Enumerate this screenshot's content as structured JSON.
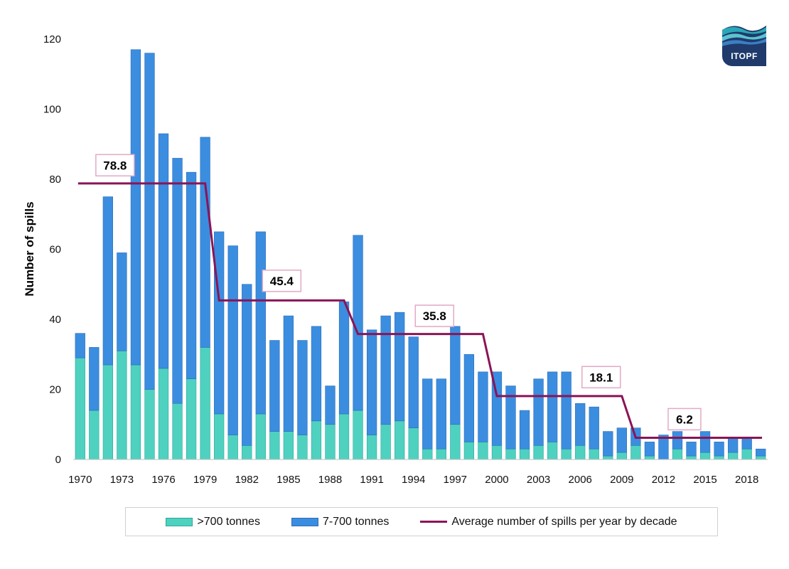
{
  "chart_data": {
    "type": "bar",
    "stacked": true,
    "ylabel": "Number of spills",
    "xlabel": "",
    "ylim": [
      0,
      120
    ],
    "yticks": [
      0,
      20,
      40,
      60,
      80,
      100,
      120
    ],
    "grid": false,
    "legend_position": "bottom",
    "x": [
      1970,
      1971,
      1972,
      1973,
      1974,
      1975,
      1976,
      1977,
      1978,
      1979,
      1980,
      1981,
      1982,
      1983,
      1984,
      1985,
      1986,
      1987,
      1988,
      1989,
      1990,
      1991,
      1992,
      1993,
      1994,
      1995,
      1996,
      1997,
      1998,
      1999,
      2000,
      2001,
      2002,
      2003,
      2004,
      2005,
      2006,
      2007,
      2008,
      2009,
      2010,
      2011,
      2012,
      2013,
      2014,
      2015,
      2016,
      2017,
      2018,
      2019
    ],
    "xtick_labels": [
      "1970",
      "1973",
      "1976",
      "1979",
      "1982",
      "1985",
      "1988",
      "1991",
      "1994",
      "1997",
      "2000",
      "2003",
      "2006",
      "2009",
      "2012",
      "2015",
      "2018"
    ],
    "series": [
      {
        "name": ">700 tonnes",
        "color": "#4fd1c0",
        "values": [
          29,
          14,
          27,
          31,
          27,
          20,
          26,
          16,
          23,
          32,
          13,
          7,
          4,
          13,
          8,
          8,
          7,
          11,
          10,
          13,
          14,
          7,
          10,
          11,
          9,
          3,
          3,
          10,
          5,
          5,
          4,
          3,
          3,
          4,
          5,
          3,
          4,
          3,
          1,
          2,
          4,
          1,
          0,
          3,
          1,
          2,
          1,
          2,
          3,
          1
        ]
      },
      {
        "name": "7-700 tonnes",
        "color": "#3b8de0",
        "values": [
          7,
          18,
          48,
          28,
          90,
          96,
          67,
          70,
          59,
          60,
          52,
          54,
          46,
          52,
          26,
          33,
          27,
          27,
          11,
          32,
          50,
          30,
          31,
          31,
          26,
          20,
          20,
          28,
          25,
          20,
          21,
          18,
          11,
          19,
          20,
          22,
          12,
          12,
          7,
          7,
          5,
          4,
          7,
          5,
          4,
          6,
          4,
          4,
          3,
          2
        ]
      }
    ],
    "average_line": {
      "name": "Average number of spills per year by decade",
      "color": "#8b1456",
      "points": [
        {
          "x": 1970,
          "y": 78.8
        },
        {
          "x": 1979,
          "y": 78.8
        },
        {
          "x": 1980,
          "y": 45.4
        },
        {
          "x": 1989,
          "y": 45.4
        },
        {
          "x": 1990,
          "y": 35.8
        },
        {
          "x": 1999,
          "y": 35.8
        },
        {
          "x": 2000,
          "y": 18.1
        },
        {
          "x": 2009,
          "y": 18.1
        },
        {
          "x": 2010,
          "y": 6.2
        },
        {
          "x": 2019,
          "y": 6.2
        }
      ]
    },
    "annotations": [
      {
        "label": "78.8",
        "x": 1972,
        "y": 84
      },
      {
        "label": "45.4",
        "x": 1984,
        "y": 51
      },
      {
        "label": "35.8",
        "x": 1995,
        "y": 41
      },
      {
        "label": "18.1",
        "x": 2007,
        "y": 23.5
      },
      {
        "label": "6.2",
        "x": 2013,
        "y": 11.5
      }
    ]
  },
  "logo": {
    "text": "ITOPF",
    "color": "#1f3a6b"
  }
}
